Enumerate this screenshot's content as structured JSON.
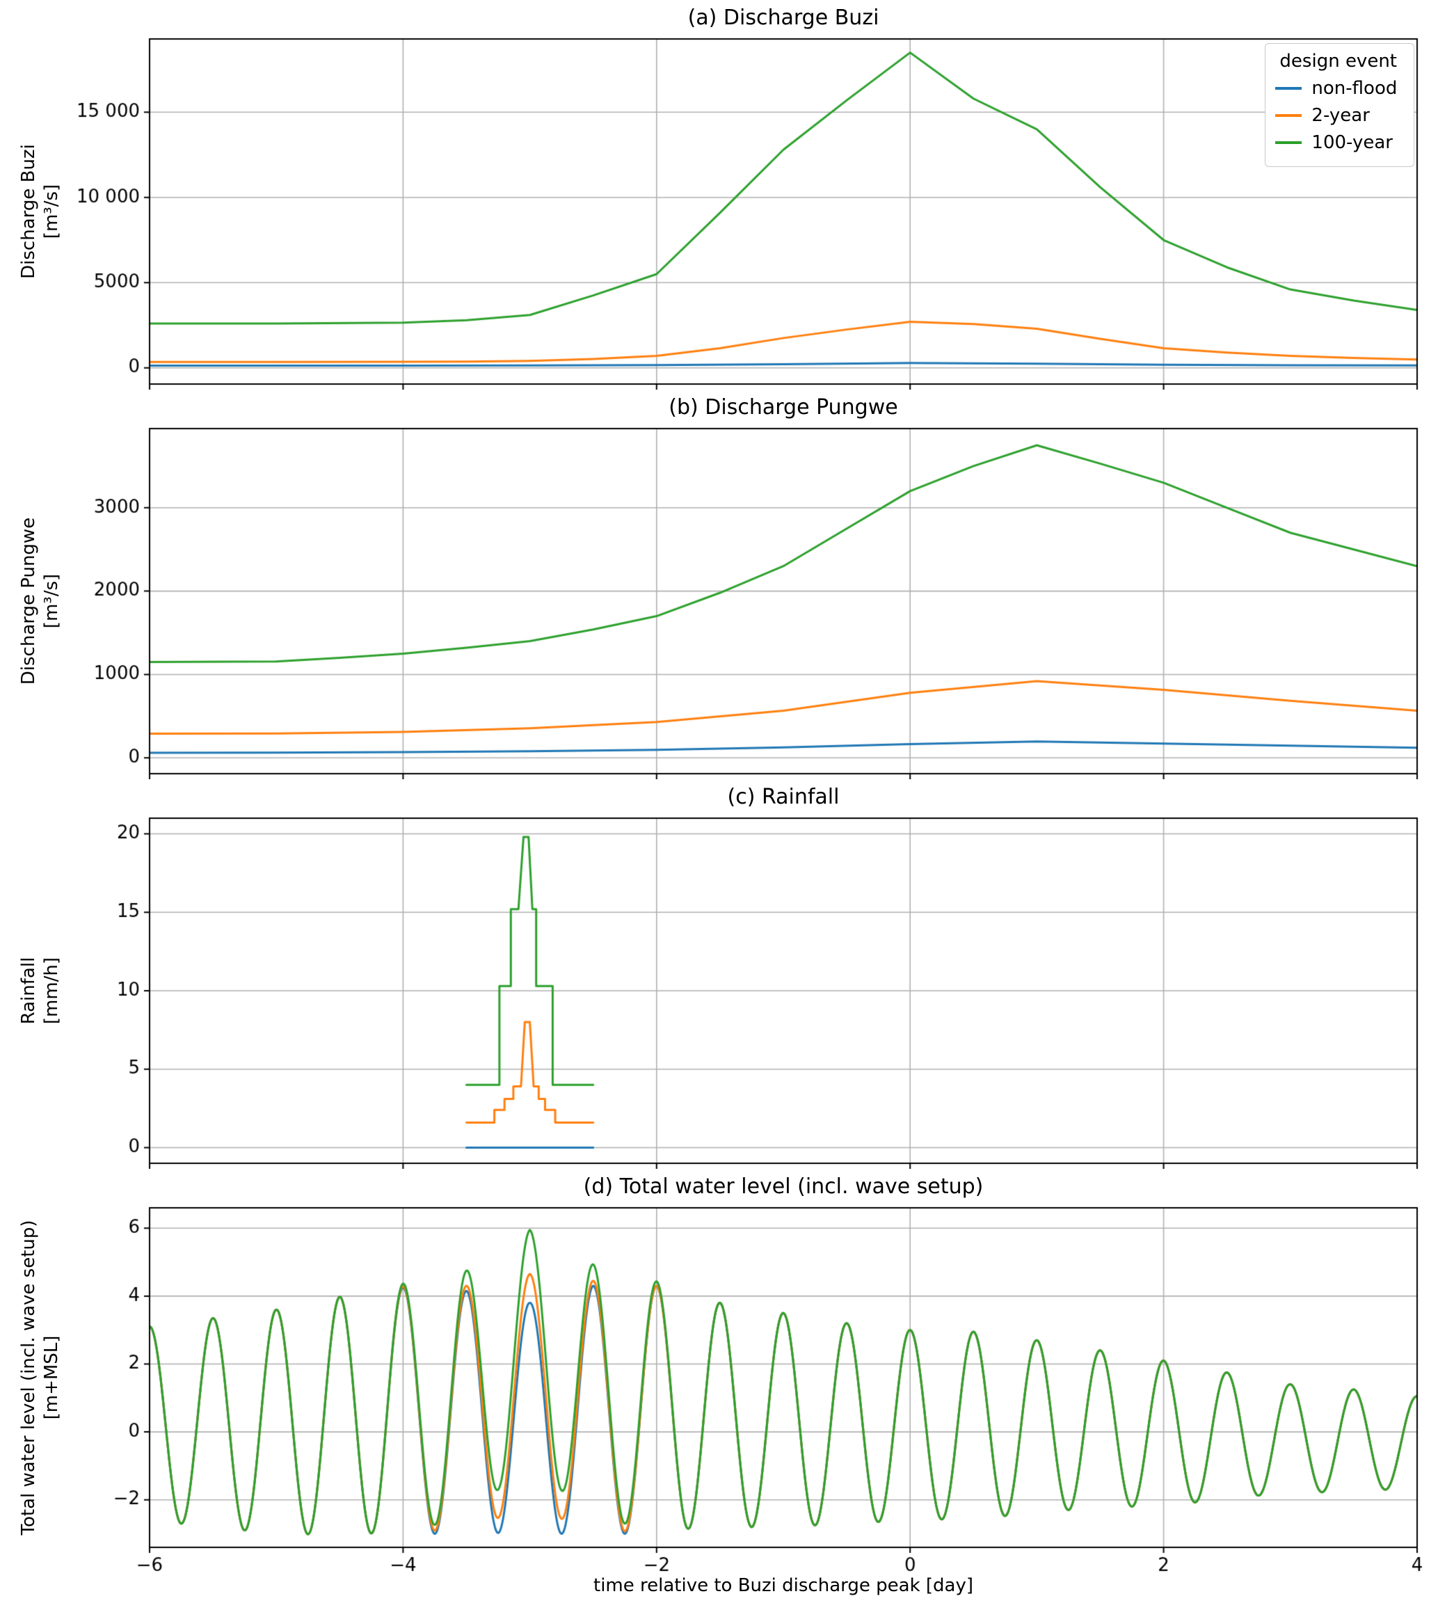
{
  "xlabel": "time relative to Buzi discharge peak [day]",
  "xticks": [
    {
      "v": -6,
      "label": "−6"
    },
    {
      "v": -4,
      "label": "−4"
    },
    {
      "v": -2,
      "label": "−2"
    },
    {
      "v": 0,
      "label": "0"
    },
    {
      "v": 2,
      "label": "2"
    },
    {
      "v": 4,
      "label": "4"
    }
  ],
  "legend": {
    "title": "design event",
    "entries": [
      {
        "label": "non-flood",
        "color": "#1f77b4"
      },
      {
        "label": "2-year",
        "color": "#ff7f0e"
      },
      {
        "label": "100-year",
        "color": "#2ca02c"
      }
    ]
  },
  "chart_data": [
    {
      "id": "a",
      "type": "line",
      "title": "(a) Discharge Buzi",
      "ylabel_text": "Discharge Buzi\n[m³/s]",
      "xlim": [
        -6,
        4
      ],
      "ylim": [
        -950,
        19300
      ],
      "show_xticklabels": false,
      "yticks": [
        {
          "v": 0,
          "label": "0"
        },
        {
          "v": 5000,
          "label": "5000"
        },
        {
          "v": 10000,
          "label": "10 000"
        },
        {
          "v": 15000,
          "label": "15 000"
        }
      ],
      "series": [
        {
          "name": "non-flood",
          "color": "#1f77b4",
          "points": [
            [
              -6,
              130
            ],
            [
              -5,
              130
            ],
            [
              -4,
              130
            ],
            [
              -3,
              140
            ],
            [
              -2,
              165
            ],
            [
              -1,
              215
            ],
            [
              0,
              280
            ],
            [
              1,
              240
            ],
            [
              2,
              185
            ],
            [
              3,
              155
            ],
            [
              4,
              140
            ]
          ]
        },
        {
          "name": "2-year",
          "color": "#ff7f0e",
          "points": [
            [
              -6,
              350
            ],
            [
              -5,
              350
            ],
            [
              -4,
              355
            ],
            [
              -3.5,
              365
            ],
            [
              -3,
              405
            ],
            [
              -2.5,
              520
            ],
            [
              -2,
              700
            ],
            [
              -1.5,
              1150
            ],
            [
              -1,
              1750
            ],
            [
              -0.5,
              2250
            ],
            [
              0,
              2700
            ],
            [
              0.5,
              2570
            ],
            [
              1,
              2300
            ],
            [
              1.5,
              1700
            ],
            [
              2,
              1150
            ],
            [
              2.5,
              900
            ],
            [
              3,
              700
            ],
            [
              3.5,
              580
            ],
            [
              4,
              490
            ]
          ]
        },
        {
          "name": "100-year",
          "color": "#2ca02c",
          "points": [
            [
              -6,
              2600
            ],
            [
              -5,
              2600
            ],
            [
              -4,
              2650
            ],
            [
              -3.5,
              2800
            ],
            [
              -3,
              3100
            ],
            [
              -2.5,
              4250
            ],
            [
              -2,
              5500
            ],
            [
              -1.5,
              9100
            ],
            [
              -1,
              12800
            ],
            [
              -0.5,
              15700
            ],
            [
              0,
              18500
            ],
            [
              0.5,
              15800
            ],
            [
              1,
              14000
            ],
            [
              1.5,
              10600
            ],
            [
              2,
              7500
            ],
            [
              2.5,
              5900
            ],
            [
              3,
              4600
            ],
            [
              3.5,
              3950
            ],
            [
              4,
              3400
            ]
          ]
        }
      ]
    },
    {
      "id": "b",
      "type": "line",
      "title": "(b) Discharge Pungwe",
      "ylabel_text": "Discharge Pungwe\n[m³/s]",
      "xlim": [
        -6,
        4
      ],
      "ylim": [
        -190,
        3950
      ],
      "show_xticklabels": false,
      "yticks": [
        {
          "v": 0,
          "label": "0"
        },
        {
          "v": 1000,
          "label": "1000"
        },
        {
          "v": 2000,
          "label": "2000"
        },
        {
          "v": 3000,
          "label": "3000"
        }
      ],
      "series": [
        {
          "name": "non-flood",
          "color": "#1f77b4",
          "points": [
            [
              -6,
              60
            ],
            [
              -5,
              62
            ],
            [
              -4,
              68
            ],
            [
              -3,
              80
            ],
            [
              -2,
              95
            ],
            [
              -1,
              125
            ],
            [
              0,
              165
            ],
            [
              1,
              195
            ],
            [
              2,
              170
            ],
            [
              3,
              145
            ],
            [
              4,
              120
            ]
          ]
        },
        {
          "name": "2-year",
          "color": "#ff7f0e",
          "points": [
            [
              -6,
              290
            ],
            [
              -5,
              292
            ],
            [
              -4,
              310
            ],
            [
              -3,
              355
            ],
            [
              -2,
              430
            ],
            [
              -1,
              565
            ],
            [
              0,
              780
            ],
            [
              1,
              920
            ],
            [
              2,
              815
            ],
            [
              3,
              685
            ],
            [
              4,
              565
            ]
          ]
        },
        {
          "name": "100-year",
          "color": "#2ca02c",
          "points": [
            [
              -6,
              1150
            ],
            [
              -5,
              1155
            ],
            [
              -4.5,
              1200
            ],
            [
              -4,
              1250
            ],
            [
              -3.5,
              1320
            ],
            [
              -3,
              1400
            ],
            [
              -2.5,
              1540
            ],
            [
              -2,
              1700
            ],
            [
              -1.5,
              1980
            ],
            [
              -1,
              2300
            ],
            [
              -0.5,
              2750
            ],
            [
              0,
              3200
            ],
            [
              0.5,
              3500
            ],
            [
              1,
              3750
            ],
            [
              1.5,
              3530
            ],
            [
              2,
              3300
            ],
            [
              2.5,
              3000
            ],
            [
              3,
              2700
            ],
            [
              3.5,
              2500
            ],
            [
              4,
              2300
            ]
          ]
        }
      ]
    },
    {
      "id": "c",
      "type": "line",
      "title": "(c) Rainfall",
      "ylabel_text": "Rainfall\n[mm/h]",
      "xlim": [
        -6,
        4
      ],
      "ylim": [
        -1,
        21
      ],
      "show_xticklabels": false,
      "yticks": [
        {
          "v": 0,
          "label": "0"
        },
        {
          "v": 5,
          "label": "5"
        },
        {
          "v": 10,
          "label": "10"
        },
        {
          "v": 15,
          "label": "15"
        },
        {
          "v": 20,
          "label": "20"
        }
      ],
      "series": [
        {
          "name": "non-flood",
          "color": "#1f77b4",
          "points": [
            [
              -3.5,
              0
            ],
            [
              -2.5,
              0
            ]
          ]
        },
        {
          "name": "2-year",
          "color": "#ff7f0e",
          "points": [
            [
              -3.5,
              1.6
            ],
            [
              -3.28,
              1.6
            ],
            [
              -3.28,
              2.4
            ],
            [
              -3.2,
              2.4
            ],
            [
              -3.2,
              3.1
            ],
            [
              -3.13,
              3.1
            ],
            [
              -3.13,
              3.9
            ],
            [
              -3.07,
              3.9
            ],
            [
              -3.04,
              8
            ],
            [
              -3.0,
              8
            ],
            [
              -2.97,
              3.9
            ],
            [
              -2.93,
              3.9
            ],
            [
              -2.93,
              3.1
            ],
            [
              -2.88,
              3.1
            ],
            [
              -2.88,
              2.4
            ],
            [
              -2.8,
              2.4
            ],
            [
              -2.8,
              1.6
            ],
            [
              -2.5,
              1.6
            ]
          ]
        },
        {
          "name": "100-year",
          "color": "#2ca02c",
          "points": [
            [
              -3.5,
              4
            ],
            [
              -3.24,
              4
            ],
            [
              -3.24,
              10.3
            ],
            [
              -3.15,
              10.3
            ],
            [
              -3.15,
              15.2
            ],
            [
              -3.09,
              15.2
            ],
            [
              -3.05,
              19.8
            ],
            [
              -3.01,
              19.8
            ],
            [
              -2.98,
              15.2
            ],
            [
              -2.95,
              15.2
            ],
            [
              -2.95,
              10.3
            ],
            [
              -2.82,
              10.3
            ],
            [
              -2.82,
              4
            ],
            [
              -2.5,
              4
            ]
          ]
        }
      ]
    },
    {
      "id": "d",
      "type": "line",
      "title": "(d) Total water level (incl. wave setup)",
      "ylabel_text": "Total water level (incl. wave setup)\n[m+MSL]",
      "xlim": [
        -6,
        4
      ],
      "ylim": [
        -3.4,
        6.6
      ],
      "show_xticklabels": true,
      "yticks": [
        {
          "v": -2,
          "label": "−2"
        },
        {
          "v": 0,
          "label": "0"
        },
        {
          "v": 2,
          "label": "2"
        },
        {
          "v": 4,
          "label": "4"
        },
        {
          "v": 6,
          "label": "6"
        }
      ],
      "tide": {
        "period_days": 0.5,
        "peak_x": -3,
        "mean": [
          [
            -6,
            0.25
          ],
          [
            -5,
            0.3
          ],
          [
            -4,
            0.65
          ],
          [
            -3.5,
            0.55
          ],
          [
            -3,
            0.45
          ],
          [
            -2.5,
            0.6
          ],
          [
            -2,
            0.7
          ],
          [
            -1.5,
            0.5
          ],
          [
            -1,
            0.35
          ],
          [
            -0.5,
            0.25
          ],
          [
            0,
            0.2
          ],
          [
            0.5,
            0.2
          ],
          [
            1,
            0.15
          ],
          [
            1.5,
            0.1
          ],
          [
            2,
            -0.05
          ],
          [
            2.5,
            -0.1
          ],
          [
            3,
            -0.2
          ],
          [
            3.5,
            -0.25
          ],
          [
            4,
            -0.3
          ]
        ],
        "envelope": [
          [
            -6,
            2.85
          ],
          [
            -5,
            3.3
          ],
          [
            -4.5,
            3.5
          ],
          [
            -4,
            3.6
          ],
          [
            -3.5,
            3.6
          ],
          [
            -3,
            3.35
          ],
          [
            -2.5,
            3.7
          ],
          [
            -2,
            3.6
          ],
          [
            -1.5,
            3.3
          ],
          [
            -1,
            3.15
          ],
          [
            -0.5,
            2.95
          ],
          [
            0,
            2.8
          ],
          [
            0.5,
            2.75
          ],
          [
            1,
            2.55
          ],
          [
            1.5,
            2.3
          ],
          [
            2,
            2.15
          ],
          [
            2.5,
            1.85
          ],
          [
            3,
            1.6
          ],
          [
            3.5,
            1.5
          ],
          [
            4,
            1.35
          ]
        ]
      },
      "series": [
        {
          "name": "non-flood",
          "color": "#1f77b4",
          "surge": [
            [
              -6,
              0
            ],
            [
              4,
              0
            ]
          ]
        },
        {
          "name": "2-year",
          "color": "#ff7f0e",
          "surge": [
            [
              -4.2,
              0
            ],
            [
              -3.5,
              0.15
            ],
            [
              -3.2,
              0.5
            ],
            [
              -3,
              0.85
            ],
            [
              -2.8,
              0.5
            ],
            [
              -2.5,
              0.15
            ],
            [
              -2,
              0
            ]
          ]
        },
        {
          "name": "100-year",
          "color": "#2ca02c",
          "surge": [
            [
              -4.2,
              0
            ],
            [
              -3.6,
              0.35
            ],
            [
              -3.3,
              1.1
            ],
            [
              -3,
              2.15
            ],
            [
              -2.7,
              1.1
            ],
            [
              -2.4,
              0.4
            ],
            [
              -1.8,
              0
            ]
          ]
        }
      ]
    }
  ]
}
